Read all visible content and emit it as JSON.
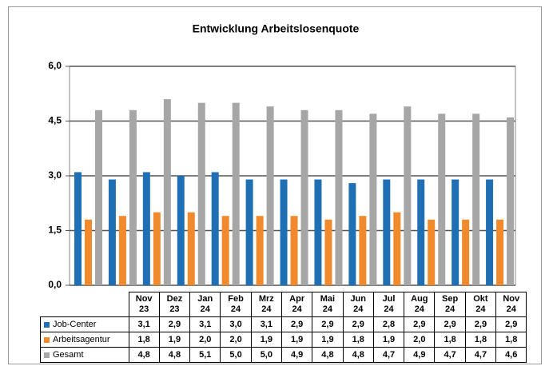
{
  "chart_data": {
    "type": "bar",
    "title": "Entwicklung Arbeitslosenquote",
    "categories": [
      "Nov 23",
      "Dez 23",
      "Jan 24",
      "Feb 24",
      "Mrz 24",
      "Apr 24",
      "Mai 24",
      "Jun 24",
      "Jul 24",
      "Aug 24",
      "Sep 24",
      "Okt 24",
      "Nov 24"
    ],
    "series": [
      {
        "name": "Job-Center",
        "color": "#1f6fb4",
        "values": [
          3.1,
          2.9,
          3.1,
          3.0,
          3.1,
          2.9,
          2.9,
          2.9,
          2.8,
          2.9,
          2.9,
          2.9,
          2.9
        ],
        "value_labels": [
          "3,1",
          "2,9",
          "3,1",
          "3,0",
          "3,1",
          "2,9",
          "2,9",
          "2,9",
          "2,8",
          "2,9",
          "2,9",
          "2,9",
          "2,9"
        ]
      },
      {
        "name": "Arbeitsagentur",
        "color": "#f08a2c",
        "values": [
          1.8,
          1.9,
          2.0,
          2.0,
          1.9,
          1.9,
          1.9,
          1.8,
          1.9,
          2.0,
          1.8,
          1.8,
          1.8
        ],
        "value_labels": [
          "1,8",
          "1,9",
          "2,0",
          "2,0",
          "1,9",
          "1,9",
          "1,9",
          "1,8",
          "1,9",
          "2,0",
          "1,8",
          "1,8",
          "1,8"
        ]
      },
      {
        "name": "Gesamt",
        "color": "#a6a6a6",
        "values": [
          4.8,
          4.8,
          5.1,
          5.0,
          5.0,
          4.9,
          4.8,
          4.8,
          4.7,
          4.9,
          4.7,
          4.7,
          4.6
        ],
        "value_labels": [
          "4,8",
          "4,8",
          "5,1",
          "5,0",
          "5,0",
          "4,9",
          "4,8",
          "4,8",
          "4,7",
          "4,9",
          "4,7",
          "4,7",
          "4,6"
        ]
      }
    ],
    "ylim": [
      0,
      6
    ],
    "yticks": [
      {
        "value": 0,
        "label": "0,0"
      },
      {
        "value": 1.5,
        "label": "1,5"
      },
      {
        "value": 3,
        "label": "3,0"
      },
      {
        "value": 4.5,
        "label": "4,5"
      },
      {
        "value": 6,
        "label": "6,0"
      }
    ],
    "grid": true
  }
}
